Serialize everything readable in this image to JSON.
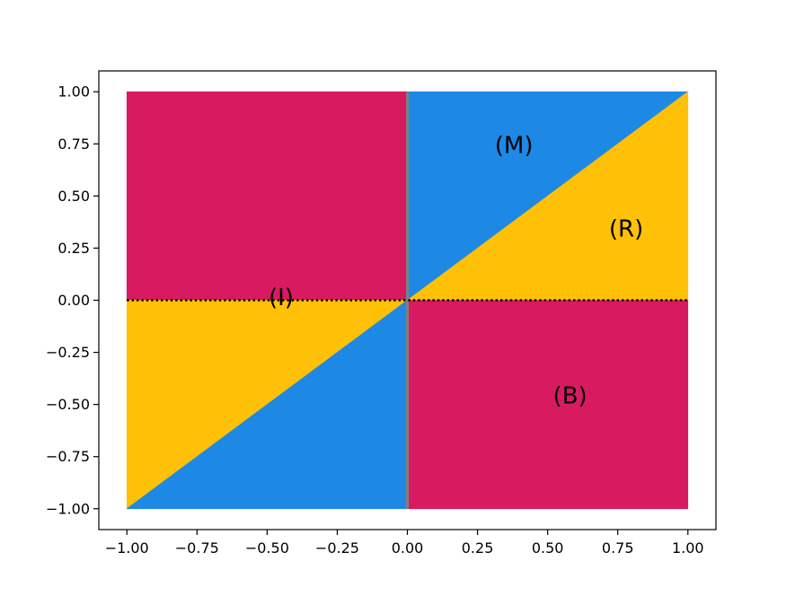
{
  "chart_data": {
    "type": "area",
    "title": "",
    "xlabel": "",
    "ylabel": "",
    "xlim": [
      -1.1,
      1.1
    ],
    "ylim": [
      -1.1,
      1.1
    ],
    "grid": false,
    "legend": "none",
    "x_ticks": [
      -1.0,
      -0.75,
      -0.5,
      -0.25,
      0.0,
      0.25,
      0.5,
      0.75,
      1.0
    ],
    "x_tick_labels": [
      "−1.00",
      "−0.75",
      "−0.50",
      "−0.25",
      "0.00",
      "0.25",
      "0.50",
      "0.75",
      "1.00"
    ],
    "y_ticks": [
      1.0,
      0.75,
      0.5,
      0.25,
      0.0,
      -0.25,
      -0.5,
      -0.75,
      -1.0
    ],
    "y_tick_labels": [
      "1.00",
      "0.75",
      "0.50",
      "0.25",
      "0.00",
      "−0.25",
      "−0.50",
      "−0.75",
      "−1.00"
    ],
    "colors": {
      "crimson": "#d81b60",
      "blue": "#1e88e5",
      "amber": "#ffc107",
      "vertical_line": "#808080",
      "dotted_line": "#000000"
    },
    "regions": [
      {
        "color": "crimson",
        "vertices": [
          [
            -1,
            0
          ],
          [
            -1,
            1
          ],
          [
            0,
            1
          ],
          [
            0,
            0
          ]
        ]
      },
      {
        "color": "amber",
        "vertices": [
          [
            -1,
            -1
          ],
          [
            -1,
            0
          ],
          [
            0,
            0
          ]
        ]
      },
      {
        "color": "blue",
        "vertices": [
          [
            -1,
            -1
          ],
          [
            0,
            0
          ],
          [
            0,
            -1
          ]
        ]
      },
      {
        "color": "blue",
        "vertices": [
          [
            0,
            0
          ],
          [
            0,
            1
          ],
          [
            1,
            1
          ]
        ]
      },
      {
        "color": "amber",
        "vertices": [
          [
            0,
            0
          ],
          [
            1,
            1
          ],
          [
            1,
            0
          ]
        ]
      },
      {
        "color": "crimson",
        "vertices": [
          [
            0,
            -1
          ],
          [
            0,
            0
          ],
          [
            1,
            0
          ],
          [
            1,
            -1
          ]
        ]
      }
    ],
    "lines": [
      {
        "style": "solid",
        "color": "vertical_line",
        "points": [
          [
            0,
            -1
          ],
          [
            0,
            1
          ]
        ]
      },
      {
        "style": "dotted",
        "color": "dotted_line",
        "points": [
          [
            -1,
            0
          ],
          [
            1,
            0
          ]
        ]
      }
    ],
    "annotations": [
      {
        "text": "(M)",
        "x": 0.38,
        "y": 0.74
      },
      {
        "text": "(R)",
        "x": 0.78,
        "y": 0.34
      },
      {
        "text": "(I)",
        "x": -0.45,
        "y": 0.01
      },
      {
        "text": "(B)",
        "x": 0.58,
        "y": -0.46
      }
    ]
  }
}
